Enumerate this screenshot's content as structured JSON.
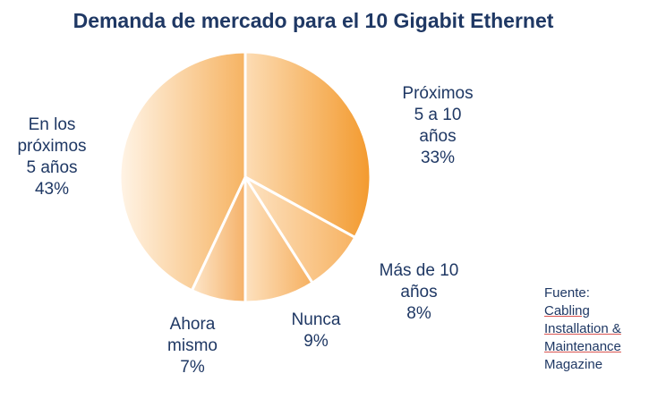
{
  "chart_data": {
    "type": "pie",
    "title": "Demanda de mercado para el 10 Gigabit Ethernet",
    "slices": [
      {
        "lines": [
          "Próximos",
          "5 a 10",
          "años"
        ],
        "value": 33,
        "pct": "33%"
      },
      {
        "lines": [
          "Más de 10",
          "años"
        ],
        "value": 8,
        "pct": "8%"
      },
      {
        "lines": [
          "Nunca"
        ],
        "value": 9,
        "pct": "9%"
      },
      {
        "lines": [
          "Ahora",
          "mismo"
        ],
        "value": 7,
        "pct": "7%"
      },
      {
        "lines": [
          "En los",
          "próximos",
          "5 años"
        ],
        "value": 43,
        "pct": "43%"
      }
    ],
    "colors": {
      "slice_dark": "#f39a2e",
      "slice_light": "#fde2c0",
      "separator": "#ffffff"
    }
  },
  "source": {
    "lines": [
      "Fuente:",
      "Cabling",
      "Installation &",
      "Maintenance",
      "Magazine"
    ]
  }
}
